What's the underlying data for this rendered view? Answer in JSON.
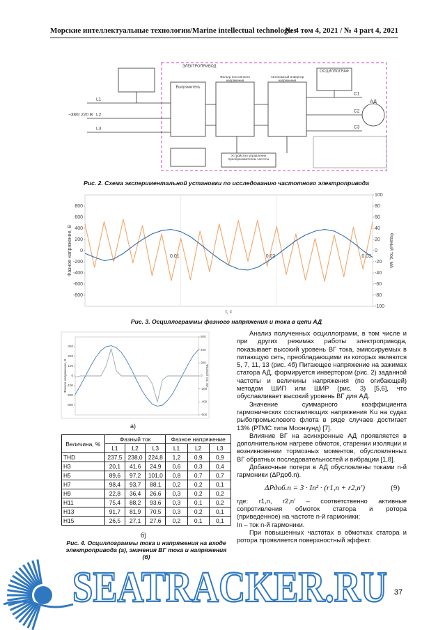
{
  "header": {
    "journal": "Морские интеллектуальные технологии/Marine intellectual technologies",
    "issue": "№ 4 том 4, 2021 / № 4 part 4, 2021"
  },
  "figure2": {
    "labels": {
      "drive": "ЭЛЕКТРОПРИВОД",
      "oscilloscope": "ОСЦИЛЛОГРАФ",
      "rectifier": "Выпрямитель",
      "filter": "Фильтр постоянного напряжения",
      "inverter": "Автономный инвертор напряжения",
      "control": "Устройство управления преобразователем частоты",
      "supply": "~380/ 220 В",
      "l1": "L1",
      "l2": "L2",
      "l3": "L3",
      "c1": "C1",
      "c2": "C2",
      "c3": "C3",
      "motor": "АД"
    },
    "caption": "Рис. 2. Схема экспериментальной установки по исследованию частотного электропривода"
  },
  "figure3": {
    "caption": "Рис. 3. Осциллограммы фазного напряжения и тока в цепи АД"
  },
  "chart_data": [
    {
      "type": "line",
      "x_label": "t, c",
      "y_label": "Фазное напряжение, В",
      "y2_label": "Фазный ток, мА",
      "x": [
        0,
        0.001,
        0.002,
        0.003,
        0.004,
        0.005,
        0.006,
        0.007,
        0.008,
        0.009,
        0.01,
        0.011,
        0.012,
        0.013,
        0.014,
        0.015,
        0.016,
        0.017,
        0.018,
        0.019,
        0.02,
        0.021,
        0.022,
        0.023,
        0.024,
        0.025,
        0.026,
        0.027,
        0.028,
        0.029,
        0.03
      ],
      "xlim": [
        0,
        0.03
      ],
      "xticks": [
        {
          "value": 0.01,
          "label": "0,01"
        },
        {
          "value": 0.02,
          "label": "0,02"
        },
        {
          "value": 0.03,
          "label": "0,03"
        }
      ],
      "ylim": [
        -1000,
        1000
      ],
      "yticks": [
        -800,
        -600,
        -400,
        -200,
        0,
        200,
        400,
        600,
        800
      ],
      "y2lim": [
        -100,
        100
      ],
      "y2ticks": [
        -100,
        -80,
        -60,
        -40,
        -20,
        0,
        20,
        40,
        60,
        80,
        100
      ],
      "series": [
        {
          "color": "#f2a66a",
          "values": [
            480,
            -300,
            520,
            -200,
            560,
            -220,
            450,
            -450,
            300,
            -540,
            220,
            -520,
            350,
            -380,
            480,
            -260,
            540,
            -190,
            540,
            -280,
            430,
            -430,
            300,
            -530,
            220,
            -550,
            280,
            -470,
            420,
            -330,
            510
          ]
        },
        {
          "color": "#2e6db4",
          "axis": "y2",
          "values": [
            -5,
            -12,
            -18,
            -15,
            -5,
            8,
            20,
            30,
            36,
            38,
            34,
            25,
            12,
            -2,
            -15,
            -26,
            -33,
            -35,
            -30,
            -20,
            -8,
            5,
            18,
            28,
            35,
            38,
            35,
            26,
            14,
            0,
            -12
          ]
        }
      ]
    },
    {
      "type": "line",
      "y_label": "Фазное напряжение, В",
      "y2_label": "Фазный ток, мА",
      "categories": [
        null,
        null,
        null,
        null,
        null,
        null,
        null,
        null,
        null,
        null,
        null,
        null,
        null,
        null,
        null,
        null,
        null,
        null,
        null,
        null,
        null,
        null,
        null,
        null,
        null
      ],
      "ylim": [
        -400,
        400
      ],
      "yticks": [
        -300,
        -200,
        -100,
        0,
        100,
        200,
        300
      ],
      "y2lim": [
        -600,
        600
      ],
      "y2ticks": [
        -600,
        -400,
        -200,
        0,
        200,
        400,
        600
      ],
      "series": [
        {
          "color": "#4a7fc0",
          "values": [
            -190,
            -100,
            0,
            100,
            190,
            260,
            300,
            310,
            290,
            240,
            160,
            60,
            -50,
            -150,
            -230,
            -290,
            -310,
            -300,
            -250,
            -180,
            -80,
            20,
            120,
            210,
            270
          ]
        },
        {
          "color": "#9aa6b4",
          "axis": "y2",
          "values": [
            -20,
            0,
            0,
            0,
            0,
            0,
            150,
            420,
            80,
            0,
            0,
            0,
            0,
            0,
            0,
            -120,
            -400,
            -60,
            0,
            0,
            0,
            0,
            0,
            0,
            0
          ]
        }
      ]
    }
  ],
  "figure4": {
    "panel_a": "а)",
    "panel_b": "б)",
    "caption": "Рис. 4. Осциллограммы тока и напряжения на входе электропривода (а), значения ВГ тока и напряжения (б)"
  },
  "table": {
    "header": {
      "quantity": "Величина, %",
      "current": "Фазный ток",
      "voltage": "Фазное напряжение",
      "phases": [
        "L1",
        "L2",
        "L3",
        "L1",
        "L2",
        "L3"
      ]
    },
    "rows": [
      [
        "THD",
        "237,5",
        "238,0",
        "224,8",
        "1,2",
        "0,9",
        "0,9"
      ],
      [
        "H3",
        "20,1",
        "41,6",
        "24,9",
        "0,6",
        "0,3",
        "0,4"
      ],
      [
        "H5",
        "89,6",
        "97,2",
        "101,0",
        "0,8",
        "0,7",
        "0,7"
      ],
      [
        "H7",
        "98,4",
        "93,7",
        "88,1",
        "0,2",
        "0,2",
        "0,1"
      ],
      [
        "H9",
        "22,8",
        "36,4",
        "26,6",
        "0,3",
        "0,2",
        "0,2"
      ],
      [
        "H11",
        "75,4",
        "88,2",
        "93,6",
        "0,3",
        "0,1",
        "0,2"
      ],
      [
        "H13",
        "91,7",
        "81,9",
        "70,5",
        "0,3",
        "0,2",
        "0,1"
      ],
      [
        "H15",
        "26,5",
        "27,1",
        "27,6",
        "0,2",
        "0,1",
        "0,1"
      ]
    ]
  },
  "text": {
    "paragraphs": [
      "Анализ полученных осциллограмм, в том числе и при других режимах работы электропривода, показывает высокий уровень ВГ тока, эмиссируемых в питающую сеть, преобладающими из которых являются 5, 7, 11, 13 (рис. 4б) Питающее напряжение на зажимах статора АД, формируется инвертором (рис. 2) заданной частоты и величины напряжения (по огибающей) методом ШИП или ШИР (рис. 3) [5,6], что обуславливает высокий уровень ВГ для АД.",
      "Значение суммарного коэффициента гармонических составляющих напряжения Ku на судах рыбопромыслового флота в ряде случаев достигает 13% (РТМС типа Моонзунд) [7].",
      "Влияние ВГ на асинхронные АД проявляется в дополнительном нагреве обмоток, старении изоляции и возникновении тормозных моментов, обусловленных ВГ обратных последовательностей и вибрации [1,8].",
      "Добавочные потери в АД обусловлены токами n-й гармоники (ΔPдоб.n)."
    ],
    "formula": {
      "expression": "ΔPдоб.n = 3 · In² · (r1,n + r2,n′)",
      "number": "(9)"
    },
    "after": [
      "где: r1,n, r2,n′ – соответственно активные сопротивления обмоток статора и ротора (приведенное) на частоте n-й гармоники;",
      "In – ток n-й гармоники.",
      "При повышенных частотах в обмотках статора и ротора проявляется поверхностный эффект."
    ]
  },
  "footer": {
    "watermark": "SEATRACKER.RU",
    "page": "37"
  }
}
